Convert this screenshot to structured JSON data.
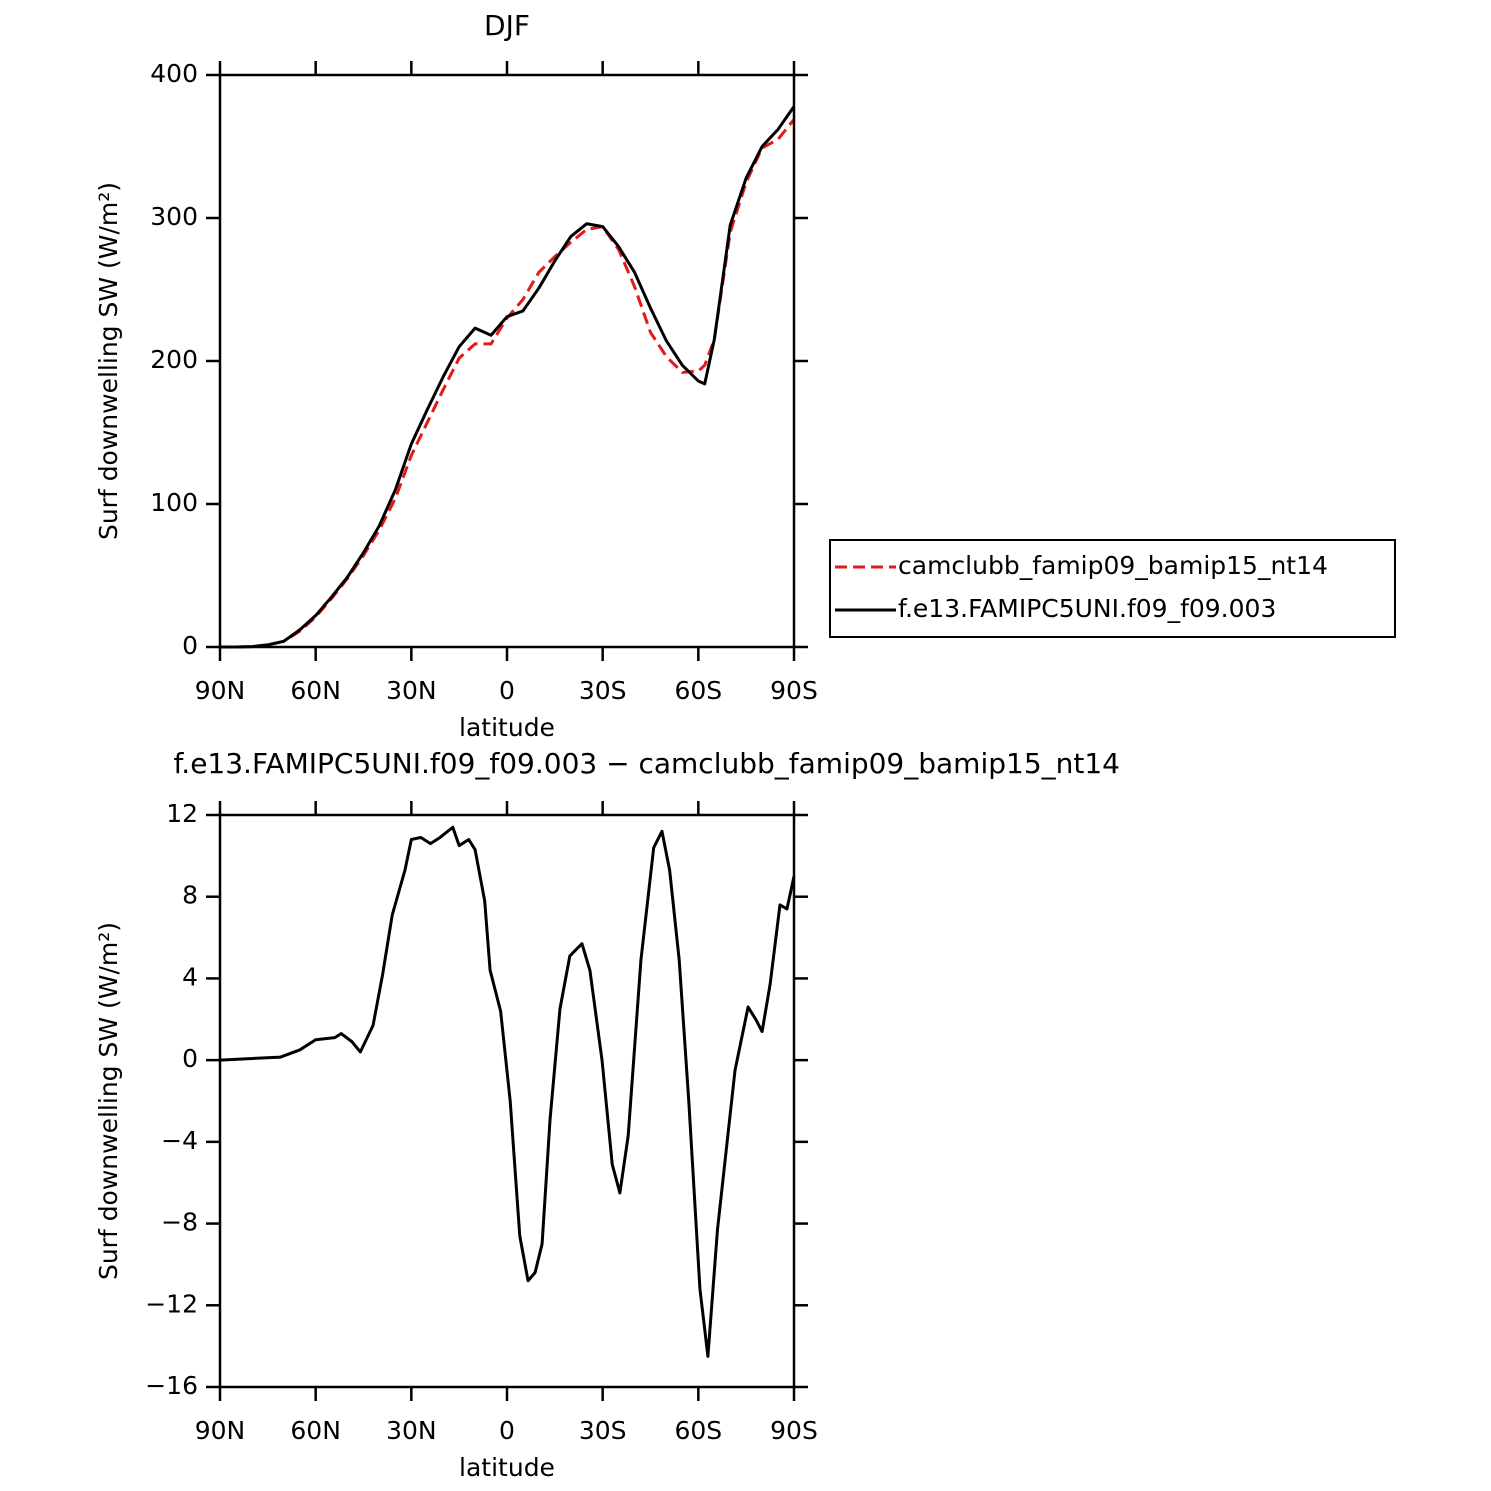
{
  "chart_data": [
    {
      "type": "line",
      "title": "DJF",
      "xlabel": "latitude",
      "ylabel": "Surf downwelling SW (W/m²)",
      "x": [
        90,
        85,
        80,
        75,
        70,
        65,
        60,
        55,
        50,
        45,
        40,
        35,
        30,
        25,
        20,
        15,
        10,
        5,
        0,
        -5,
        -10,
        -15,
        -20,
        -25,
        -30,
        -35,
        -40,
        -45,
        -50,
        -55,
        -60,
        -62,
        -65,
        -70,
        -75,
        -80,
        -85,
        -90
      ],
      "series": [
        {
          "name": "camclubb_famip09_bamip15_nt14",
          "color": "#e31a1c",
          "linestyle": "dashed",
          "values": [
            0,
            0,
            0.3,
            1.5,
            4,
            11,
            21,
            34,
            48,
            64,
            82,
            104,
            134,
            157,
            180,
            202,
            212,
            212,
            230,
            243,
            262,
            273,
            283,
            292,
            294,
            278,
            252,
            220,
            203,
            192,
            193,
            197,
            215,
            290,
            325,
            349,
            355,
            369
          ]
        },
        {
          "name": "f.e13.FAMIPC5UNI.f09_f09.003",
          "color": "#000000",
          "linestyle": "solid",
          "values": [
            0,
            0,
            0.3,
            1.5,
            4,
            12,
            22,
            35,
            49,
            66,
            85,
            110,
            142,
            166,
            189,
            210,
            223,
            218,
            231,
            235,
            251,
            270,
            287,
            296,
            294,
            280,
            262,
            237,
            214,
            197,
            186,
            184,
            215,
            295,
            328,
            350,
            362,
            378
          ]
        }
      ],
      "xlim": [
        90,
        -90
      ],
      "xticks": [
        {
          "value": 90,
          "label": "90N"
        },
        {
          "value": 60,
          "label": "60N"
        },
        {
          "value": 30,
          "label": "30N"
        },
        0,
        {
          "value": -30,
          "label": "30S"
        },
        {
          "value": -60,
          "label": "60S"
        },
        {
          "value": -90,
          "label": "90S"
        }
      ],
      "ylim": [
        0,
        400
      ],
      "yticks": [
        0,
        100,
        200,
        300,
        400
      ],
      "legend": "right"
    },
    {
      "type": "line",
      "title": "f.e13.FAMIPC5UNI.f09_f09.003 − camclubb_famip09_bamip15_nt14",
      "xlabel": "latitude",
      "ylabel": "Surf downwelling SW (W/m²)",
      "x": [
        90,
        71,
        65,
        60,
        54,
        52,
        48.6,
        46,
        42,
        39,
        36,
        32,
        30,
        27,
        24,
        21,
        17,
        15,
        12,
        10,
        7,
        5.3,
        2,
        -1,
        -4,
        -6.6,
        -8.8,
        -11,
        -13.5,
        -16.6,
        -19.7,
        -23.5,
        -26,
        -29.8,
        -33,
        -35.4,
        -38,
        -42,
        -46,
        -48.6,
        -51,
        -54,
        -57,
        -60.5,
        -63,
        -66,
        -71.5,
        -75.6,
        -78,
        -80,
        -82.5,
        -85.6,
        -87.8,
        -90
      ],
      "series": [
        {
          "color": "#000000",
          "linestyle": "solid",
          "values": [
            0,
            0.15,
            0.5,
            1.0,
            1.1,
            1.3,
            0.9,
            0.4,
            1.7,
            4.2,
            7.1,
            9.3,
            10.8,
            10.9,
            10.6,
            10.9,
            11.4,
            10.5,
            10.8,
            10.3,
            7.8,
            4.4,
            2.4,
            -2.0,
            -8.6,
            -10.8,
            -10.4,
            -9.0,
            -2.9,
            2.5,
            5.1,
            5.7,
            4.4,
            0,
            -5.1,
            -6.5,
            -3.7,
            4.9,
            10.4,
            11.2,
            9.3,
            4.9,
            -2.0,
            -11.2,
            -14.5,
            -8.3,
            -0.5,
            2.6,
            2.0,
            1.4,
            3.7,
            7.6,
            7.4,
            9.0
          ]
        }
      ],
      "xlim": [
        90,
        -90
      ],
      "xticks": [
        {
          "value": 90,
          "label": "90N"
        },
        {
          "value": 60,
          "label": "60N"
        },
        {
          "value": 30,
          "label": "30N"
        },
        0,
        {
          "value": -30,
          "label": "30S"
        },
        {
          "value": -60,
          "label": "60S"
        },
        {
          "value": -90,
          "label": "90S"
        }
      ],
      "ylim": [
        -16,
        12
      ],
      "yticks": [
        {
          "value": -16,
          "label": "−16"
        },
        {
          "value": -12,
          "label": "−12"
        },
        {
          "value": -8,
          "label": "−8"
        },
        {
          "value": -4,
          "label": "−4"
        },
        0,
        4,
        8,
        12
      ]
    }
  ]
}
